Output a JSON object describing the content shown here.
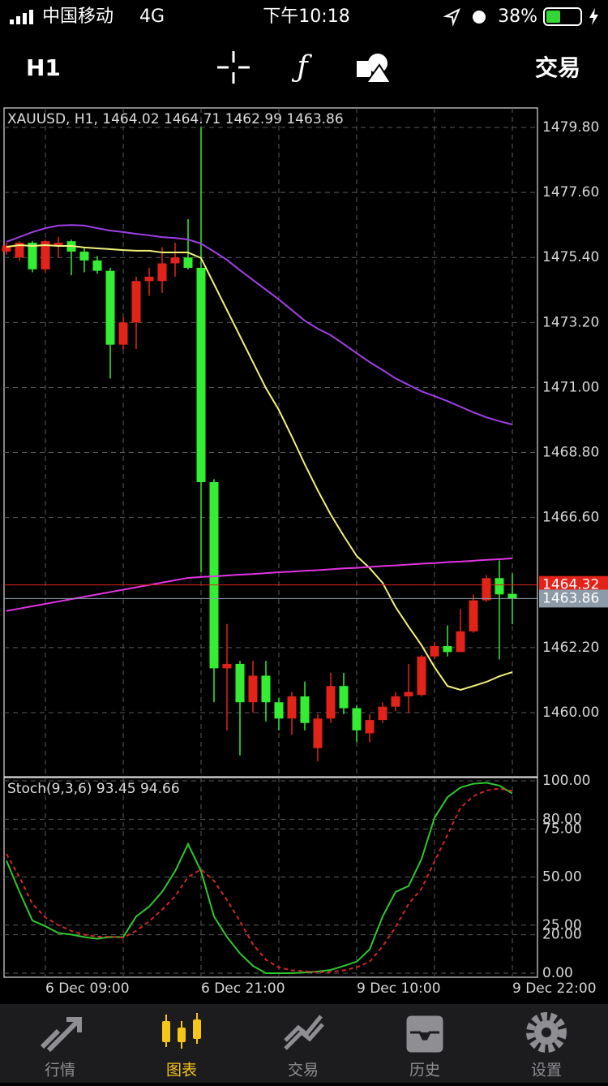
{
  "status_bar": {
    "carrier": "中国移动",
    "network": "4G",
    "time": "下午10:18",
    "battery": "38%"
  },
  "toolbar": {
    "timeframe": "H1",
    "trade": "交易"
  },
  "chart_data": [
    {
      "type": "candlestick",
      "title": "XAUUSD, H1, 1464.02 1464.71 1462.99 1463.86",
      "categories": [
        null,
        null,
        null,
        "6 Dec 09:00",
        null,
        null,
        null,
        null,
        null,
        null,
        null,
        null,
        null,
        null,
        null,
        "6 Dec 21:00",
        null,
        null,
        null,
        null,
        null,
        null,
        null,
        null,
        null,
        null,
        null,
        "9 Dec 10:00",
        null,
        null,
        null,
        null,
        null,
        null,
        null,
        null,
        null,
        null,
        null,
        "9 Dec 22:00"
      ],
      "open": [
        1475.6,
        1475.4,
        1475.9,
        1475.0,
        1475.8,
        1475.95,
        1475.6,
        1475.3,
        1474.95,
        1472.45,
        1473.2,
        1474.6,
        1474.6,
        1475.2,
        1475.4,
        1475.05,
        1467.8,
        1461.5,
        1461.65,
        1460.35,
        1461.25,
        1460.35,
        1459.8,
        1460.55,
        1458.8,
        1459.8,
        1460.9,
        1460.15,
        1459.3,
        1459.75,
        1460.2,
        1460.55,
        1460.6,
        1461.9,
        1462.25,
        1462.05,
        1462.75,
        1463.8,
        1464.55,
        1464.02
      ],
      "high": [
        1475.9,
        1475.95,
        1475.95,
        1476.0,
        1476.1,
        1476.0,
        1475.75,
        1475.45,
        1475.05,
        1473.4,
        1474.75,
        1475.05,
        1475.75,
        1475.9,
        1476.7,
        1479.8,
        1467.9,
        1463.0,
        1461.75,
        1461.75,
        1461.75,
        1460.5,
        1460.7,
        1461.05,
        1459.95,
        1461.35,
        1461.35,
        1460.25,
        1459.95,
        1460.35,
        1460.7,
        1461.65,
        1461.95,
        1462.4,
        1462.95,
        1463.5,
        1464.0,
        1464.65,
        1465.15,
        1464.71
      ],
      "low": [
        1475.5,
        1475.3,
        1474.9,
        1474.9,
        1475.4,
        1474.8,
        1474.9,
        1474.85,
        1471.3,
        1472.3,
        1472.3,
        1474.1,
        1474.2,
        1474.75,
        1475.0,
        1464.75,
        1460.35,
        1459.4,
        1458.55,
        1460.0,
        1459.7,
        1459.4,
        1459.25,
        1459.4,
        1458.35,
        1459.65,
        1459.95,
        1459.0,
        1459.0,
        1459.65,
        1460.05,
        1460.0,
        1460.55,
        1461.8,
        1461.9,
        1462.05,
        1462.7,
        1463.75,
        1461.8,
        1462.99
      ],
      "close": [
        1475.8,
        1475.9,
        1475.0,
        1475.95,
        1475.9,
        1475.6,
        1475.3,
        1474.95,
        1472.45,
        1473.2,
        1474.6,
        1474.75,
        1475.2,
        1475.4,
        1475.05,
        1467.8,
        1461.5,
        1461.65,
        1460.35,
        1461.25,
        1460.35,
        1459.8,
        1460.55,
        1459.65,
        1459.8,
        1460.9,
        1460.15,
        1459.4,
        1459.75,
        1460.2,
        1460.55,
        1460.7,
        1461.9,
        1462.25,
        1462.05,
        1462.75,
        1463.8,
        1464.55,
        1464.0,
        1463.86
      ],
      "up_color": "#e2231a",
      "down_color": "#33ee33",
      "series": [
        {
          "color": "#f2f27a",
          "values": [
            1475.76,
            1475.82,
            1475.79,
            1475.82,
            1475.79,
            1475.79,
            1475.74,
            1475.71,
            1475.68,
            1475.65,
            1475.63,
            1475.63,
            1475.57,
            1475.57,
            1475.57,
            1475.38,
            1474.5,
            1473.62,
            1472.74,
            1471.86,
            1470.98,
            1470.24,
            1469.34,
            1468.4,
            1467.52,
            1466.7,
            1465.98,
            1465.3,
            1464.89,
            1464.39,
            1463.57,
            1462.91,
            1462.28,
            1461.54,
            1460.9,
            1460.77,
            1460.9,
            1461.04,
            1461.23,
            1461.37
          ]
        },
        {
          "color": "#a040e8",
          "values": [
            1475.93,
            1476.09,
            1476.26,
            1476.39,
            1476.48,
            1476.5,
            1476.48,
            1476.39,
            1476.31,
            1476.26,
            1476.2,
            1476.15,
            1476.09,
            1476.06,
            1476.01,
            1475.87,
            1475.6,
            1475.32,
            1474.97,
            1474.64,
            1474.31,
            1473.98,
            1473.62,
            1473.26,
            1472.99,
            1472.77,
            1472.47,
            1472.16,
            1471.86,
            1471.59,
            1471.31,
            1471.09,
            1470.87,
            1470.71,
            1470.54,
            1470.35,
            1470.16,
            1469.99,
            1469.86,
            1469.75
          ]
        },
        {
          "color": "#e234e2",
          "values": [
            1463.44,
            1463.52,
            1463.6,
            1463.68,
            1463.76,
            1463.84,
            1463.92,
            1464.0,
            1464.08,
            1464.16,
            1464.24,
            1464.32,
            1464.4,
            1464.48,
            1464.56,
            1464.59,
            1464.61,
            1464.64,
            1464.67,
            1464.69,
            1464.72,
            1464.75,
            1464.77,
            1464.8,
            1464.82,
            1464.85,
            1464.88,
            1464.9,
            1464.93,
            1464.96,
            1464.98,
            1465.01,
            1465.04,
            1465.06,
            1465.09,
            1465.11,
            1465.14,
            1465.17,
            1465.19,
            1465.22
          ]
        }
      ],
      "ylim": [
        1457.83,
        1480.46
      ],
      "yticks": [
        {
          "value": 1479.8,
          "label": "1479.80"
        },
        {
          "value": 1477.6,
          "label": "1477.60"
        },
        {
          "value": 1475.4,
          "label": "1475.40"
        },
        {
          "value": 1473.2,
          "label": "1473.20"
        },
        {
          "value": 1471.0,
          "label": "1471.00"
        },
        {
          "value": 1468.8,
          "label": "1468.80"
        },
        {
          "value": 1466.6,
          "label": "1466.60"
        },
        {
          "value": 1462.2,
          "label": "1462.20"
        },
        {
          "value": 1460.0,
          "label": "1460.00"
        }
      ],
      "price_lines": [
        {
          "value": 1464.32,
          "label": "1464.32",
          "color": "#e2231a"
        },
        {
          "value": 1463.86,
          "label": "1463.86",
          "color": "#8d9ba8"
        }
      ],
      "grid": true
    },
    {
      "type": "line",
      "title": "Stoch(9,3,6) 93.45 94.66",
      "series": [
        {
          "color": "#2ec82e",
          "dash": false,
          "values": [
            58.5,
            42.3,
            27.4,
            24.4,
            20.9,
            20.1,
            18.8,
            17.9,
            18.8,
            18.8,
            29.5,
            34.6,
            42.3,
            53.0,
            67.1,
            53.0,
            29.5,
            18.8,
            10.3,
            3.8,
            0,
            0,
            0,
            0.4,
            0.9,
            1.7,
            3.8,
            6.0,
            12.4,
            29.5,
            42.3,
            45.3,
            59.4,
            80.8,
            91.5,
            96.5,
            98.5,
            99.0,
            97.5,
            93.45
          ]
        },
        {
          "color": "#d42626",
          "dash": true,
          "values": [
            62,
            50,
            36,
            29,
            25,
            22,
            20,
            19,
            19,
            18.5,
            22,
            27,
            33,
            40,
            50,
            54,
            48,
            38,
            27,
            15,
            7,
            3,
            1.5,
            1,
            0.5,
            0.7,
            1.5,
            3,
            6,
            14,
            24,
            36,
            44,
            58,
            72,
            86,
            92,
            95,
            96,
            94.66
          ]
        }
      ],
      "ylim": [
        -2.1,
        101.7
      ],
      "yticks": [
        {
          "value": 100,
          "label": "100.00"
        },
        {
          "value": 80,
          "label": "80.00"
        },
        {
          "value": 75,
          "label": "75.00"
        },
        {
          "value": 50,
          "label": "50.00"
        },
        {
          "value": 25,
          "label": "25.00"
        },
        {
          "value": 20,
          "label": "20.00"
        },
        {
          "value": 0,
          "label": "0.00"
        }
      ],
      "grid": true
    }
  ],
  "tab_bar": {
    "tabs": [
      "行情",
      "图表",
      "交易",
      "历史",
      "设置"
    ],
    "active": 1
  }
}
